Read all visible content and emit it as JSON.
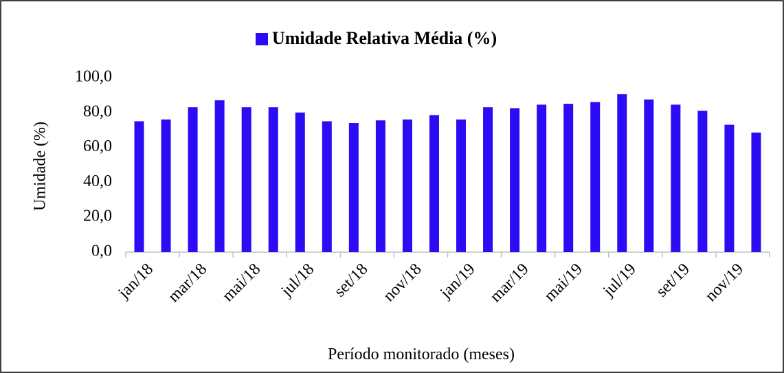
{
  "chart_data": {
    "type": "bar",
    "y_label": "Umidade (%)",
    "x_label": "Período monitorado (meses)",
    "categories": [
      "jan/18",
      null,
      "mar/18",
      null,
      "mai/18",
      null,
      "jul/18",
      null,
      "set/18",
      null,
      "nov/18",
      null,
      "jan/19",
      null,
      "mar/19",
      null,
      "mai/19",
      null,
      "jul/19",
      null,
      "set/19",
      null,
      "nov/19",
      null
    ],
    "series": [
      {
        "name": "Umidade Relativa Média (%)",
        "color": "#2b0cf5",
        "values": [
          75,
          76,
          83,
          87,
          83,
          83,
          80,
          75,
          74,
          75.5,
          76,
          78.5,
          76,
          83,
          82.5,
          84.5,
          85,
          86,
          90.5,
          87.5,
          84.5,
          81,
          73,
          68.5
        ]
      }
    ],
    "ylim": [
      0,
      100
    ],
    "yticks": [
      {
        "value": 0,
        "label": "0,0"
      },
      {
        "value": 20,
        "label": "20,0"
      },
      {
        "value": 40,
        "label": "40,0"
      },
      {
        "value": 60,
        "label": "60,0"
      },
      {
        "value": 80,
        "label": "80,0"
      },
      {
        "value": 100,
        "label": "100,0"
      }
    ],
    "legend": "top"
  }
}
